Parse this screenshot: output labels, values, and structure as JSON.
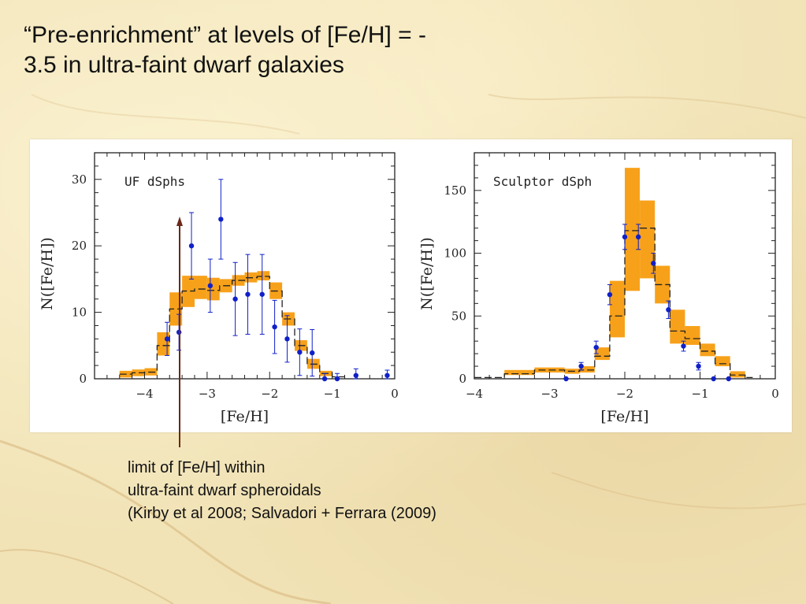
{
  "slide": {
    "title_line1": "“Pre-enrichment” at levels of [Fe/H] = -",
    "title_line2": "3.5 in ultra-faint dwarf galaxies",
    "caption_line1": "limit of [Fe/H] within",
    "caption_line2": "ultra-faint dwarf spheroidals",
    "caption_line3": "(Kirby et al 2008; Salvadori + Ferrara (2009)",
    "colors": {
      "band": "#f7a11a",
      "points": "#1020c8",
      "arrow": "#6b2a1a"
    }
  },
  "chart_data": [
    {
      "type": "bar",
      "panel_label": "UF dSphs",
      "xlabel": "[Fe/H]",
      "ylabel": "N([Fe/H])",
      "xlim": [
        -4.8,
        0
      ],
      "ylim": [
        0,
        34
      ],
      "xticks": [
        "−4",
        "−3",
        "−2",
        "−1",
        "0"
      ],
      "yticks": [
        "0",
        "10",
        "20",
        "30"
      ],
      "model_band": [
        {
          "x0": -4.4,
          "x1": -4.2,
          "lo": 0.2,
          "hi": 1.2
        },
        {
          "x0": -4.2,
          "x1": -4.0,
          "lo": 0.4,
          "hi": 1.4
        },
        {
          "x0": -4.0,
          "x1": -3.8,
          "lo": 0.5,
          "hi": 1.6
        },
        {
          "x0": -3.8,
          "x1": -3.6,
          "lo": 3.5,
          "hi": 7.0
        },
        {
          "x0": -3.6,
          "x1": -3.4,
          "lo": 8.0,
          "hi": 13.0
        },
        {
          "x0": -3.4,
          "x1": -3.2,
          "lo": 10.8,
          "hi": 15.5
        },
        {
          "x0": -3.2,
          "x1": -3.0,
          "lo": 12.0,
          "hi": 15.5
        },
        {
          "x0": -3.0,
          "x1": -2.8,
          "lo": 11.8,
          "hi": 15.2
        },
        {
          "x0": -2.8,
          "x1": -2.6,
          "lo": 13.0,
          "hi": 15.0
        },
        {
          "x0": -2.6,
          "x1": -2.4,
          "lo": 14.0,
          "hi": 15.6
        },
        {
          "x0": -2.4,
          "x1": -2.2,
          "lo": 14.5,
          "hi": 16.0
        },
        {
          "x0": -2.2,
          "x1": -2.0,
          "lo": 14.8,
          "hi": 16.2
        },
        {
          "x0": -2.0,
          "x1": -1.8,
          "lo": 12.0,
          "hi": 14.5
        },
        {
          "x0": -1.8,
          "x1": -1.6,
          "lo": 8.0,
          "hi": 10.0
        },
        {
          "x0": -1.6,
          "x1": -1.4,
          "lo": 4.2,
          "hi": 5.8
        },
        {
          "x0": -1.4,
          "x1": -1.2,
          "lo": 1.5,
          "hi": 3.0
        },
        {
          "x0": -1.2,
          "x1": -1.0,
          "lo": 0.4,
          "hi": 1.2
        }
      ],
      "model_line": {
        "edges": [
          -4.4,
          -4.2,
          -4.0,
          -3.8,
          -3.6,
          -3.4,
          -3.2,
          -3.0,
          -2.8,
          -2.6,
          -2.4,
          -2.2,
          -2.0,
          -1.8,
          -1.6,
          -1.4,
          -1.2,
          -1.0,
          -0.8
        ],
        "values": [
          0.7,
          0.9,
          1.0,
          5.0,
          10.5,
          13.2,
          13.5,
          13.3,
          14.0,
          14.8,
          15.2,
          15.4,
          13.2,
          9.0,
          5.0,
          2.2,
          0.8,
          0.3
        ]
      },
      "points": [
        {
          "x": -3.64,
          "y": 6.0,
          "err": 2.5
        },
        {
          "x": -3.45,
          "y": 7.0,
          "err": 2.7
        },
        {
          "x": -3.25,
          "y": 20.0,
          "err": 5.0
        },
        {
          "x": -2.95,
          "y": 14.0,
          "err": 4.0
        },
        {
          "x": -2.78,
          "y": 24.0,
          "err": 6.0
        },
        {
          "x": -2.55,
          "y": 12.0,
          "err": 5.5
        },
        {
          "x": -2.35,
          "y": 12.7,
          "err": 6.0
        },
        {
          "x": -2.12,
          "y": 12.7,
          "err": 6.0
        },
        {
          "x": -1.92,
          "y": 7.8,
          "err": 4.0
        },
        {
          "x": -1.72,
          "y": 6.0,
          "err": 3.5
        },
        {
          "x": -1.52,
          "y": 4.0,
          "err": 3.5
        },
        {
          "x": -1.32,
          "y": 3.9,
          "err": 3.5
        },
        {
          "x": -1.12,
          "y": 0.0,
          "err": 0.8
        },
        {
          "x": -0.92,
          "y": 0.0,
          "err": 0.8
        },
        {
          "x": -0.62,
          "y": 0.5,
          "err": 1.0
        },
        {
          "x": -0.12,
          "y": 0.5,
          "err": 0.8
        }
      ]
    },
    {
      "type": "bar",
      "panel_label": "Sculptor dSph",
      "xlabel": "[Fe/H]",
      "ylabel": "N([Fe/H])",
      "xlim": [
        -4,
        0
      ],
      "ylim": [
        0,
        180
      ],
      "xticks": [
        "−4",
        "−3",
        "−2",
        "−1",
        "0"
      ],
      "yticks": [
        "0",
        "50",
        "100",
        "150"
      ],
      "model_band": [
        {
          "x0": -3.6,
          "x1": -3.2,
          "lo": 3,
          "hi": 7
        },
        {
          "x0": -3.2,
          "x1": -2.8,
          "lo": 5,
          "hi": 9
        },
        {
          "x0": -2.8,
          "x1": -2.6,
          "lo": 4,
          "hi": 8
        },
        {
          "x0": -2.6,
          "x1": -2.4,
          "lo": 5,
          "hi": 10
        },
        {
          "x0": -2.4,
          "x1": -2.2,
          "lo": 15,
          "hi": 25
        },
        {
          "x0": -2.2,
          "x1": -2.0,
          "lo": 33,
          "hi": 78
        },
        {
          "x0": -2.0,
          "x1": -1.8,
          "lo": 70,
          "hi": 168
        },
        {
          "x0": -1.8,
          "x1": -1.6,
          "lo": 80,
          "hi": 142
        },
        {
          "x0": -1.6,
          "x1": -1.4,
          "lo": 60,
          "hi": 90
        },
        {
          "x0": -1.4,
          "x1": -1.2,
          "lo": 28,
          "hi": 55
        },
        {
          "x0": -1.2,
          "x1": -1.0,
          "lo": 27,
          "hi": 42
        },
        {
          "x0": -1.0,
          "x1": -0.8,
          "lo": 18,
          "hi": 28
        },
        {
          "x0": -0.8,
          "x1": -0.6,
          "lo": 10,
          "hi": 18
        },
        {
          "x0": -0.6,
          "x1": -0.4,
          "lo": 1,
          "hi": 6
        }
      ],
      "model_line": {
        "edges": [
          -4.0,
          -3.6,
          -3.2,
          -2.8,
          -2.6,
          -2.4,
          -2.2,
          -2.0,
          -1.8,
          -1.6,
          -1.4,
          -1.2,
          -1.0,
          -0.8,
          -0.6,
          -0.4,
          -0.3
        ],
        "values": [
          1,
          4,
          7,
          6,
          7,
          18,
          50,
          118,
          120,
          75,
          38,
          32,
          22,
          12,
          3,
          1
        ]
      },
      "points": [
        {
          "x": -2.78,
          "y": 0,
          "err": 0
        },
        {
          "x": -2.58,
          "y": 10,
          "err": 3
        },
        {
          "x": -2.38,
          "y": 25,
          "err": 5
        },
        {
          "x": -2.2,
          "y": 67,
          "err": 8
        },
        {
          "x": -2.0,
          "y": 113,
          "err": 10
        },
        {
          "x": -1.82,
          "y": 113,
          "err": 10
        },
        {
          "x": -1.62,
          "y": 92,
          "err": 8
        },
        {
          "x": -1.42,
          "y": 55,
          "err": 7
        },
        {
          "x": -1.22,
          "y": 26,
          "err": 4
        },
        {
          "x": -1.02,
          "y": 10,
          "err": 3
        },
        {
          "x": -0.82,
          "y": 0,
          "err": 0
        },
        {
          "x": -0.62,
          "y": 0,
          "err": 0
        }
      ]
    }
  ]
}
